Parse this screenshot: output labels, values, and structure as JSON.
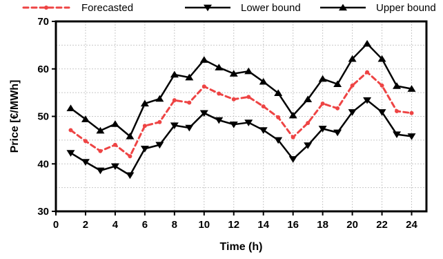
{
  "chart_data": {
    "type": "line",
    "title": "",
    "xlabel": "Time (h)",
    "ylabel": "Price [€/MWh]",
    "xlim": [
      0,
      25
    ],
    "ylim": [
      30,
      70
    ],
    "x_ticks": [
      0,
      2,
      4,
      6,
      8,
      10,
      12,
      14,
      16,
      18,
      20,
      22,
      24
    ],
    "y_ticks": [
      30,
      40,
      50,
      60,
      70
    ],
    "grid": true,
    "legend_position": "top",
    "x": [
      1,
      2,
      3,
      4,
      5,
      6,
      7,
      8,
      9,
      10,
      11,
      12,
      13,
      14,
      15,
      16,
      17,
      18,
      19,
      20,
      21,
      22,
      23,
      24
    ],
    "series": [
      {
        "name": "Forecasted",
        "color": "#ee4444",
        "style": "dashed",
        "marker": "circle",
        "values": [
          47.1,
          44.8,
          42.7,
          44.0,
          41.6,
          48.0,
          48.8,
          53.4,
          52.9,
          56.3,
          54.8,
          53.6,
          54.1,
          52.1,
          49.8,
          45.6,
          48.6,
          52.7,
          51.7,
          56.5,
          59.3,
          56.5,
          51.1,
          50.7
        ]
      },
      {
        "name": "Lower bound",
        "color": "#000000",
        "style": "solid",
        "marker": "triangle-down",
        "values": [
          42.3,
          40.4,
          38.6,
          39.5,
          37.6,
          43.2,
          44.0,
          48.1,
          47.6,
          50.7,
          49.2,
          48.3,
          48.7,
          47.1,
          45.0,
          41.0,
          43.9,
          47.4,
          46.6,
          50.9,
          53.4,
          50.9,
          46.2,
          45.8
        ]
      },
      {
        "name": "Upper bound",
        "color": "#000000",
        "style": "solid",
        "marker": "triangle-up",
        "values": [
          51.7,
          49.4,
          47.0,
          48.4,
          45.8,
          52.7,
          53.7,
          58.8,
          58.2,
          61.9,
          60.3,
          59.0,
          59.5,
          57.3,
          54.9,
          50.2,
          53.6,
          57.9,
          56.8,
          62.1,
          65.3,
          62.1,
          56.4,
          55.8
        ]
      }
    ]
  }
}
